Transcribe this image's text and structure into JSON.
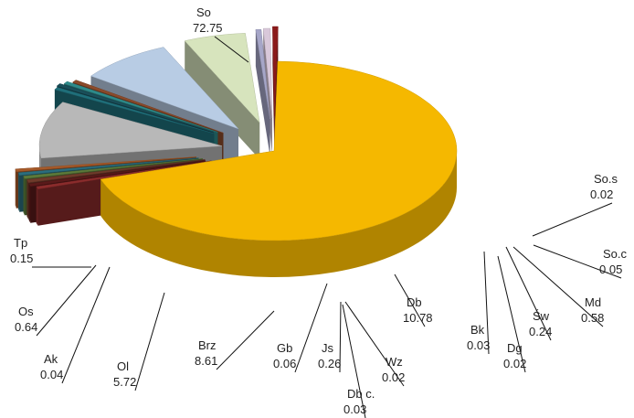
{
  "chart_data": {
    "type": "pie",
    "style": "3d-exploded",
    "title": "",
    "slices": [
      {
        "name": "So",
        "value": 72.75,
        "value_text": "72.75",
        "color": "#F5B800"
      },
      {
        "name": "So.s",
        "value": 0.02,
        "value_text": "0.02",
        "color": "#8B2C2C"
      },
      {
        "name": "So.c",
        "value": 0.05,
        "value_text": "0.05",
        "color": "#5A1A1A"
      },
      {
        "name": "Md",
        "value": 0.58,
        "value_text": "0.58",
        "color": "#6E3A2A"
      },
      {
        "name": "Św",
        "value": 0.24,
        "value_text": "0.24",
        "color": "#5C7A3A"
      },
      {
        "name": "Dg",
        "value": 0.02,
        "value_text": "0.02",
        "color": "#2B6E7E"
      },
      {
        "name": "Bk",
        "value": 0.03,
        "value_text": "0.03",
        "color": "#A65A2A"
      },
      {
        "name": "Db",
        "value": 10.78,
        "value_text": "10.78",
        "color": "#B8B8B8"
      },
      {
        "name": "Wz",
        "value": 0.02,
        "value_text": "0.02",
        "color": "#1F6F7A"
      },
      {
        "name": "Db c.",
        "value": 0.03,
        "value_text": "0.03",
        "color": "#1A4F5A"
      },
      {
        "name": "Js",
        "value": 0.26,
        "value_text": "0.26",
        "color": "#2E8B8B"
      },
      {
        "name": "Gb",
        "value": 0.06,
        "value_text": "0.06",
        "color": "#8B4A2A"
      },
      {
        "name": "Brz",
        "value": 8.61,
        "value_text": "8.61",
        "color": "#B8CCE4"
      },
      {
        "name": "Ol",
        "value": 5.72,
        "value_text": "5.72",
        "color": "#D7E4BD"
      },
      {
        "name": "Ak",
        "value": 0.04,
        "value_text": "0.04",
        "color": "#A6A6C8"
      },
      {
        "name": "Os",
        "value": 0.64,
        "value_text": "0.64",
        "color": "#D9C8DA"
      },
      {
        "name": "Tp",
        "value": 0.15,
        "value_text": "0.15",
        "color": "#8B1A1A"
      }
    ]
  }
}
